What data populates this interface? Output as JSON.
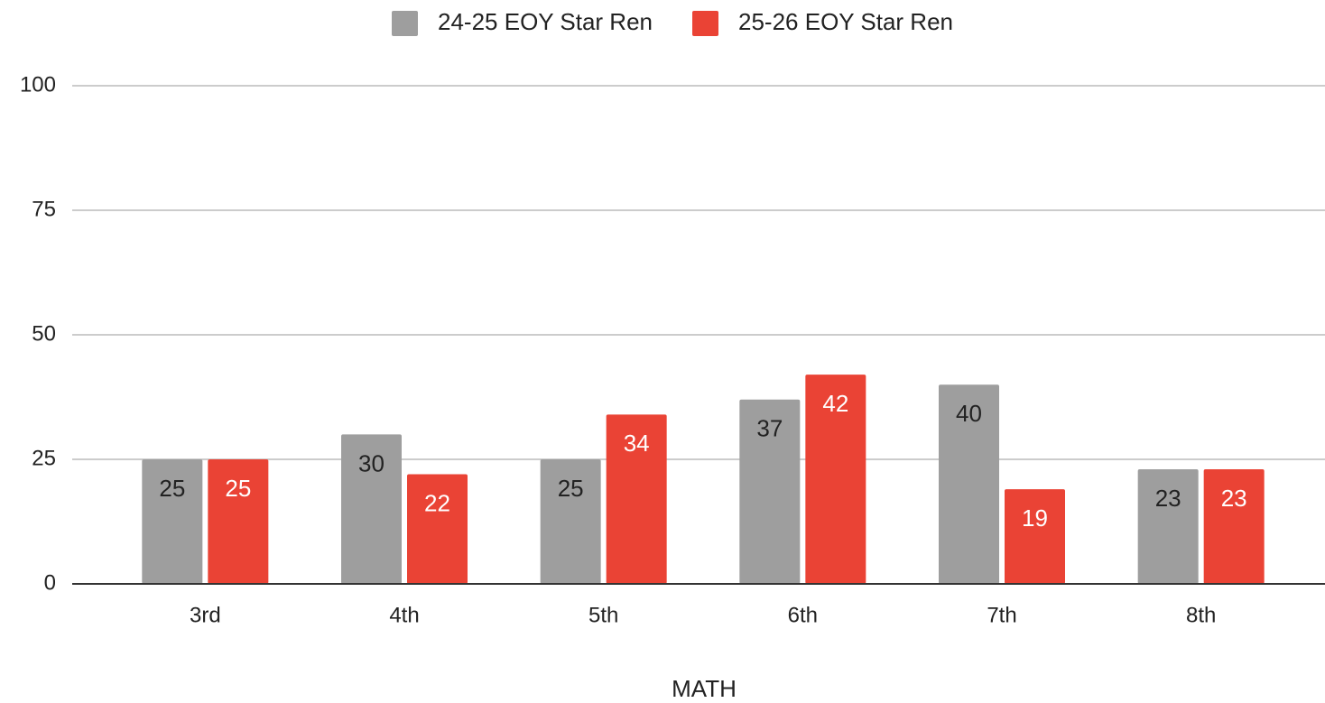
{
  "chart_data": {
    "type": "bar",
    "categories": [
      "3rd",
      "4th",
      "5th",
      "6th",
      "7th",
      "8th"
    ],
    "series": [
      {
        "name": "24-25 EOY Star Ren",
        "color": "#9e9e9e",
        "label_color": "#222222",
        "values": [
          25,
          30,
          25,
          37,
          40,
          23
        ]
      },
      {
        "name": "25-26 EOY Star Ren",
        "color": "#ea4335",
        "label_color": "#ffffff",
        "values": [
          25,
          22,
          34,
          42,
          19,
          23
        ]
      }
    ],
    "x_label": "MATH",
    "ylim": [
      0,
      100
    ],
    "yticks": [
      0,
      25,
      50,
      75,
      100
    ],
    "grid": true,
    "legend": "top"
  }
}
